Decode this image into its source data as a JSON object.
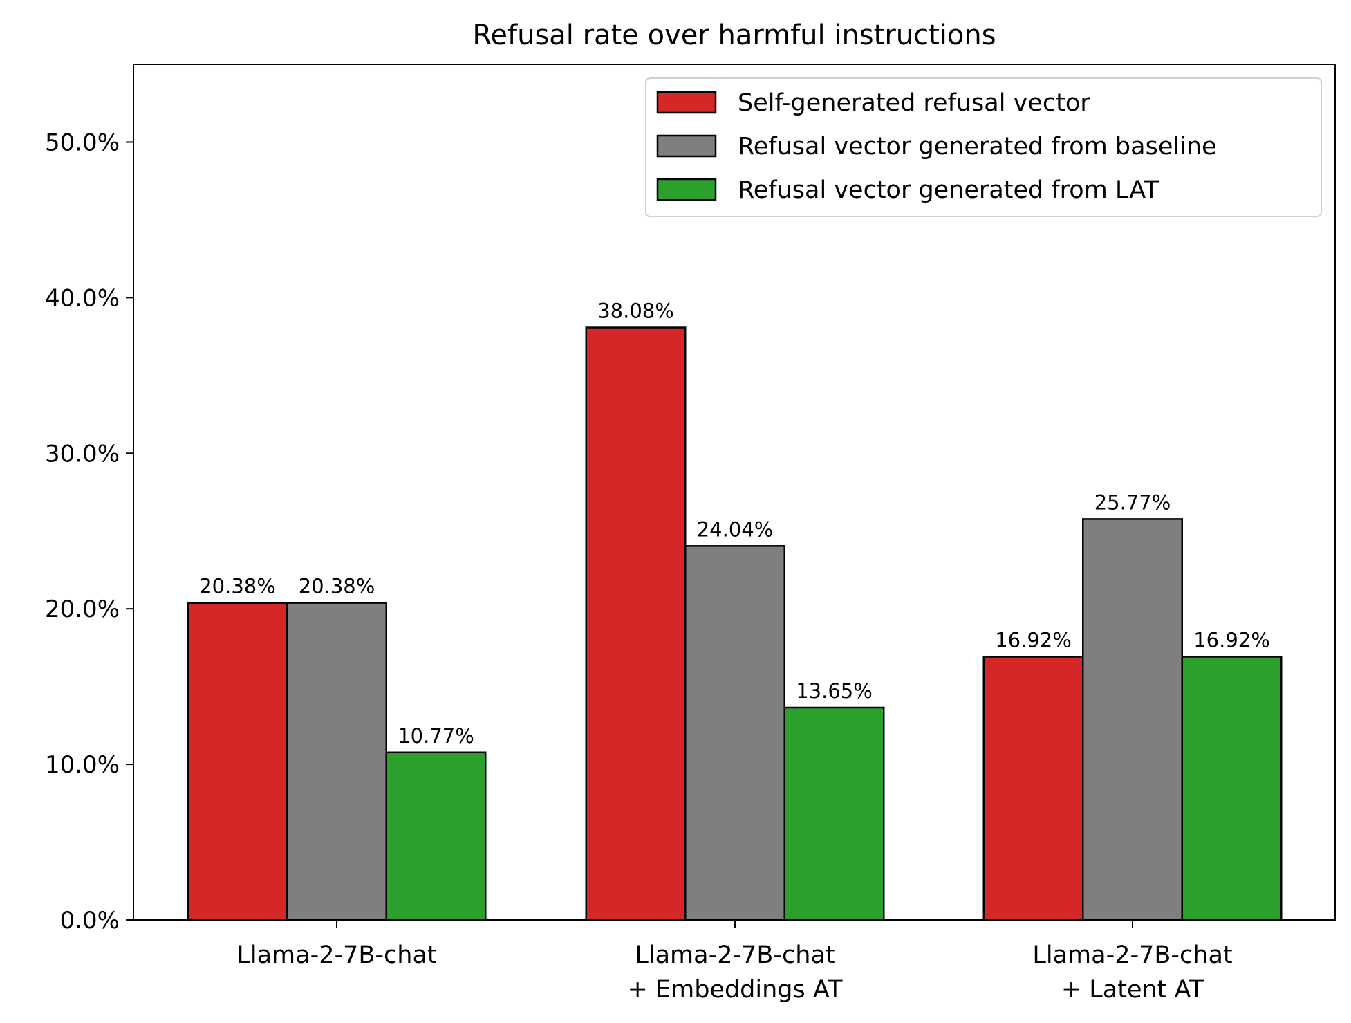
{
  "chart_data": {
    "type": "bar",
    "title": "Refusal rate over harmful instructions",
    "xlabel": "",
    "ylabel": "",
    "categories": [
      [
        "Llama-2-7B-chat"
      ],
      [
        "Llama-2-7B-chat",
        "+ Embeddings AT"
      ],
      [
        "Llama-2-7B-chat",
        "+ Latent AT"
      ]
    ],
    "series": [
      {
        "name": "Self-generated refusal vector",
        "color": "#d62728",
        "values": [
          20.38,
          38.08,
          16.92
        ]
      },
      {
        "name": "Refusal vector generated from baseline",
        "color": "#7f7f7f",
        "values": [
          20.38,
          24.04,
          25.77
        ]
      },
      {
        "name": "Refusal vector generated from LAT",
        "color": "#2ca02c",
        "values": [
          10.77,
          13.65,
          16.92
        ]
      }
    ],
    "value_label_suffix": "%",
    "ylim": [
      0,
      55
    ],
    "yticks": [
      0,
      10,
      20,
      30,
      40,
      50
    ],
    "ytick_labels": [
      "0.0%",
      "10.0%",
      "20.0%",
      "30.0%",
      "40.0%",
      "50.0%"
    ],
    "grid": false,
    "legend_position": "top-right"
  }
}
